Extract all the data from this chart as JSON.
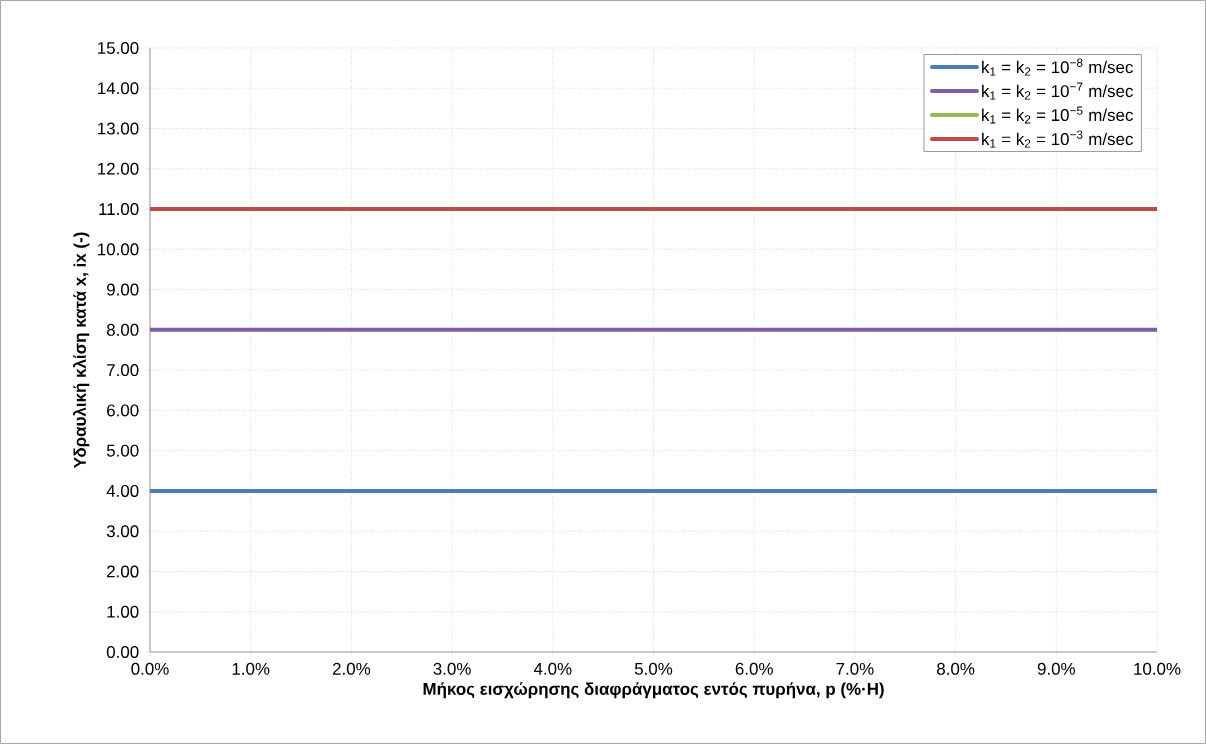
{
  "chart_data": {
    "type": "line",
    "xlabel": "Μήκος εισχώρησης διαφράγματος εντός πυρήνα, p (%·H)",
    "ylabel": "Υδραυλική κλίση κατά x, ix (-)",
    "x": [
      0,
      10
    ],
    "series": [
      {
        "name": "k$_{1}$ = k$_{2}$ = 10$^{−8}$ m/sec",
        "color": "#4a7ebb",
        "values": [
          4,
          4
        ]
      },
      {
        "name": "k$_{1}$ = k$_{2}$ = 10$^{−7}$ m/sec",
        "color": "#7d60a0",
        "values": [
          8,
          8
        ]
      },
      {
        "name": "k$_{1}$ = k$_{2}$ = 10$^{−5}$ m/sec",
        "color": "#98b954",
        "values": [
          null,
          null
        ]
      },
      {
        "name": "k$_{1}$ = k$_{2}$ = 10$^{−3}$ m/sec",
        "color": "#be4b48",
        "values": [
          11,
          11
        ]
      }
    ],
    "xlim": [
      0,
      10
    ],
    "xticks": [
      {
        "value": 0,
        "label": "0.0%"
      },
      {
        "value": 1,
        "label": "1.0%"
      },
      {
        "value": 2,
        "label": "2.0%"
      },
      {
        "value": 3,
        "label": "3.0%"
      },
      {
        "value": 4,
        "label": "4.0%"
      },
      {
        "value": 5,
        "label": "5.0%"
      },
      {
        "value": 6,
        "label": "6.0%"
      },
      {
        "value": 7,
        "label": "7.0%"
      },
      {
        "value": 8,
        "label": "8.0%"
      },
      {
        "value": 9,
        "label": "9.0%"
      },
      {
        "value": 10,
        "label": "10.0%"
      }
    ],
    "ylim": [
      0,
      15
    ],
    "yticks": [
      {
        "value": 0,
        "label": "0.00"
      },
      {
        "value": 1,
        "label": "1.00"
      },
      {
        "value": 2,
        "label": "2.00"
      },
      {
        "value": 3,
        "label": "3.00"
      },
      {
        "value": 4,
        "label": "4.00"
      },
      {
        "value": 5,
        "label": "5.00"
      },
      {
        "value": 6,
        "label": "6.00"
      },
      {
        "value": 7,
        "label": "7.00"
      },
      {
        "value": 8,
        "label": "8.00"
      },
      {
        "value": 9,
        "label": "9.00"
      },
      {
        "value": 10,
        "label": "10.00"
      },
      {
        "value": 11,
        "label": "11.00"
      },
      {
        "value": 12,
        "label": "12.00"
      },
      {
        "value": 13,
        "label": "13.00"
      },
      {
        "value": 14,
        "label": "14.00"
      },
      {
        "value": 15,
        "label": "15.00"
      }
    ],
    "grid": true,
    "legend": "top right",
    "marker": "none",
    "line_style": "solid"
  }
}
